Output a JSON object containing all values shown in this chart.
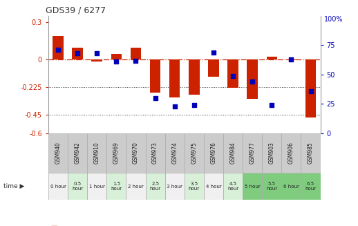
{
  "title": "GDS39 / 6277",
  "samples": [
    "GSM940",
    "GSM942",
    "GSM910",
    "GSM969",
    "GSM970",
    "GSM973",
    "GSM974",
    "GSM975",
    "GSM976",
    "GSM984",
    "GSM977",
    "GSM903",
    "GSM906",
    "GSM985"
  ],
  "time_labels": [
    "0 hour",
    "0.5\nhour",
    "1 hour",
    "1.5\nhour",
    "2 hour",
    "2.5\nhour",
    "3 hour",
    "3.5\nhour",
    "4 hour",
    "4.5\nhour",
    "5 hour",
    "5.5\nhour",
    "6 hour",
    "6.5\nhour"
  ],
  "time_colors": [
    "#f0f0f0",
    "#d8efd8",
    "#f0f0f0",
    "#d8efd8",
    "#f0f0f0",
    "#d8efd8",
    "#f0f0f0",
    "#d8efd8",
    "#f0f0f0",
    "#d8efd8",
    "#7fcc7f",
    "#7fcc7f",
    "#7fcc7f",
    "#7fcc7f"
  ],
  "gsm_color": "#cccccc",
  "log_ratio": [
    0.19,
    0.09,
    -0.02,
    0.04,
    0.09,
    -0.27,
    -0.31,
    -0.29,
    -0.14,
    -0.23,
    -0.32,
    0.02,
    -0.01,
    -0.47
  ],
  "percentile": [
    71,
    68,
    68,
    61,
    62,
    30,
    23,
    24,
    69,
    49,
    44,
    24,
    63,
    36
  ],
  "ylim_left": [
    -0.6,
    0.35
  ],
  "ylim_right": [
    0,
    100
  ],
  "yticks_left": [
    0.3,
    0,
    -0.225,
    -0.45,
    -0.6
  ],
  "yticks_right": [
    75,
    50,
    25,
    0
  ],
  "bar_color": "#cc2200",
  "dot_color": "#0000bb",
  "background_color": "#ffffff"
}
